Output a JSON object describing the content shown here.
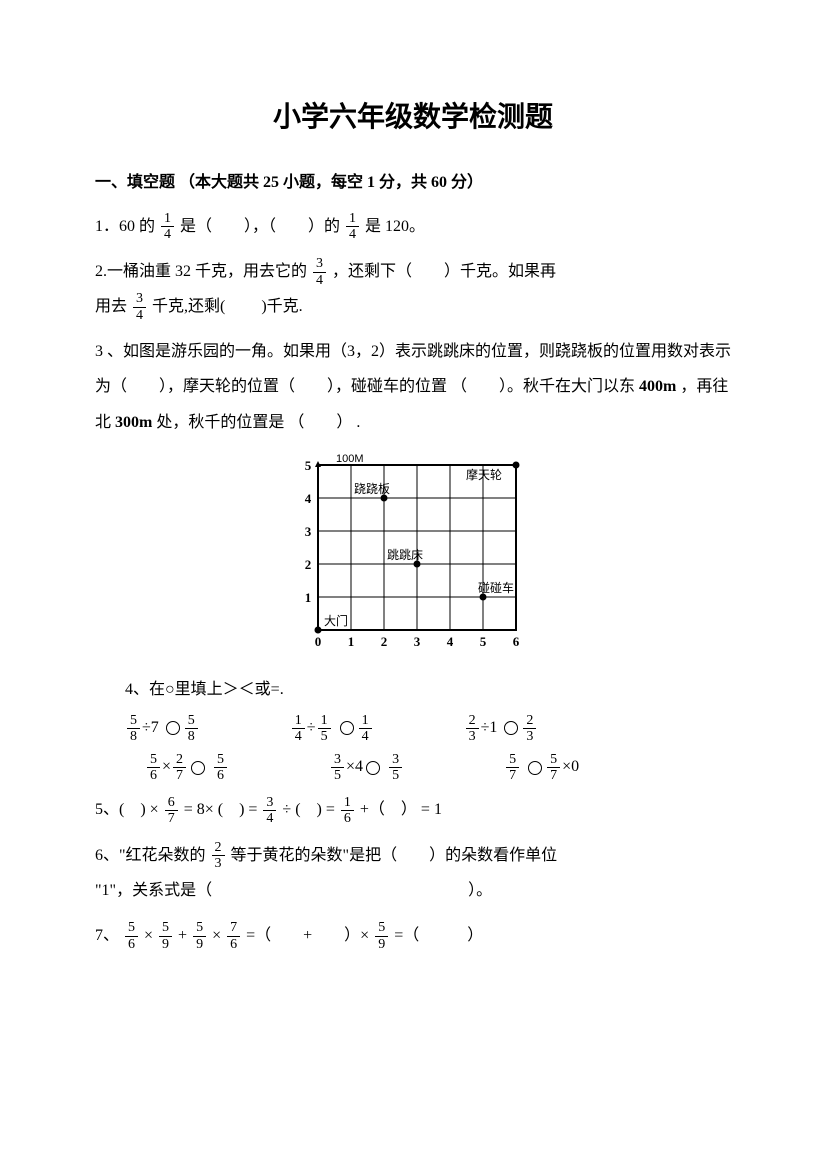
{
  "title": "小学六年级数学检测题",
  "section1_header": "一、填空题 （本大题共 25 小题，每空 1 分，共 60 分）",
  "q1": {
    "prefix": "1．60 的",
    "mid1": " 是（　　），（　　）的",
    "suffix": " 是 120。",
    "frac1_num": "1",
    "frac1_den": "4",
    "frac2_num": "1",
    "frac2_den": "4"
  },
  "q2": {
    "line1_prefix": "2.一桶油重 32 千克，用去它的",
    "line1_suffix": "，还剩下（　　）千克。如果再",
    "line2_prefix": "用去",
    "line2_suffix": "千克,还剩(　　 )千克.",
    "frac1_num": "3",
    "frac1_den": "4",
    "frac2_num": "3",
    "frac2_den": "4"
  },
  "q3": {
    "text": "3 、如图是游乐园的一角。如果用（3，2）表示跳跳床的位置，则跷跷板的位置用数对表示为（　　），摩天轮的位置（　　），碰碰车的位置 （　　）。秋千在大门以东 ",
    "bold1": "400m",
    "mid": "，再往北 ",
    "bold2": "300m",
    "suffix": " 处，秋千的位置是 （　　） ."
  },
  "grid": {
    "scale_label": "100M",
    "axis_x": [
      "0",
      "1",
      "2",
      "3",
      "4",
      "5",
      "6"
    ],
    "axis_y": [
      "0",
      "1",
      "2",
      "3",
      "4",
      "5"
    ],
    "labels": {
      "damen": "大门",
      "tiaotiaochuang": "跳跳床",
      "qiaoqiaoban": "跷跷板",
      "motianlun": "摩天轮",
      "pengpengche": "碰碰车"
    },
    "points": {
      "damen": {
        "x": 0,
        "y": 0
      },
      "tiaotiaochuang": {
        "x": 3,
        "y": 2
      },
      "qiaoqiaoban": {
        "x": 2,
        "y": 4
      },
      "motianlun": {
        "x": 6,
        "y": 5
      },
      "pengpengche": {
        "x": 5,
        "y": 1
      }
    },
    "grid_size": 6,
    "grid_rows": 5,
    "line_color": "#000000",
    "bg_color": "#ffffff"
  },
  "q4": {
    "header": "4、在○里填上＞＜或=.",
    "row1": {
      "item1": {
        "f1n": "5",
        "f1d": "8",
        "op": "÷7",
        "f2n": "5",
        "f2d": "8"
      },
      "item2": {
        "f1n": "1",
        "f1d": "4",
        "op1": "÷",
        "f2n": "1",
        "f2d": "5",
        "f3n": "1",
        "f3d": "4"
      },
      "item3": {
        "f1n": "2",
        "f1d": "3",
        "op": "÷1",
        "f2n": "2",
        "f2d": "3"
      }
    },
    "row2": {
      "item1": {
        "f1n": "5",
        "f1d": "6",
        "op": "×",
        "f2n": "2",
        "f2d": "7",
        "f3n": "5",
        "f3d": "6"
      },
      "item2": {
        "f1n": "3",
        "f1d": "5",
        "op": "×4",
        "f2n": "3",
        "f2d": "5"
      },
      "item3": {
        "f1n": "5",
        "f1d": "7",
        "f2n": "5",
        "f2d": "7",
        "op": "×0"
      }
    }
  },
  "q5": {
    "prefix": "5、(　) × ",
    "f1n": "6",
    "f1d": "7",
    "mid1": " = 8× (　) = ",
    "f2n": "3",
    "f2d": "4",
    "mid2": " ÷ (　) = ",
    "f3n": "1",
    "f3d": "6",
    "suffix": "  +（　） = 1"
  },
  "q6": {
    "prefix": "6、\"红花朵数的 ",
    "f1n": "2",
    "f1d": "3",
    "mid": " 等于黄花的朵数\"是把（　　）的朵数看作单位",
    "line2": "\"1\"，关系式是（　　　　　　　　　　　　　　　　）。"
  },
  "q7": {
    "prefix": "7、 ",
    "f1n": "5",
    "f1d": "6",
    "op1": " × ",
    "f2n": "5",
    "f2d": "9",
    "op2": "+",
    "f3n": "5",
    "f3d": "9",
    "op3": " × ",
    "f4n": "7",
    "f4d": "6",
    "mid": " =（　　+　　）×",
    "f5n": "5",
    "f5d": "9",
    "suffix": "=（　　　）"
  }
}
